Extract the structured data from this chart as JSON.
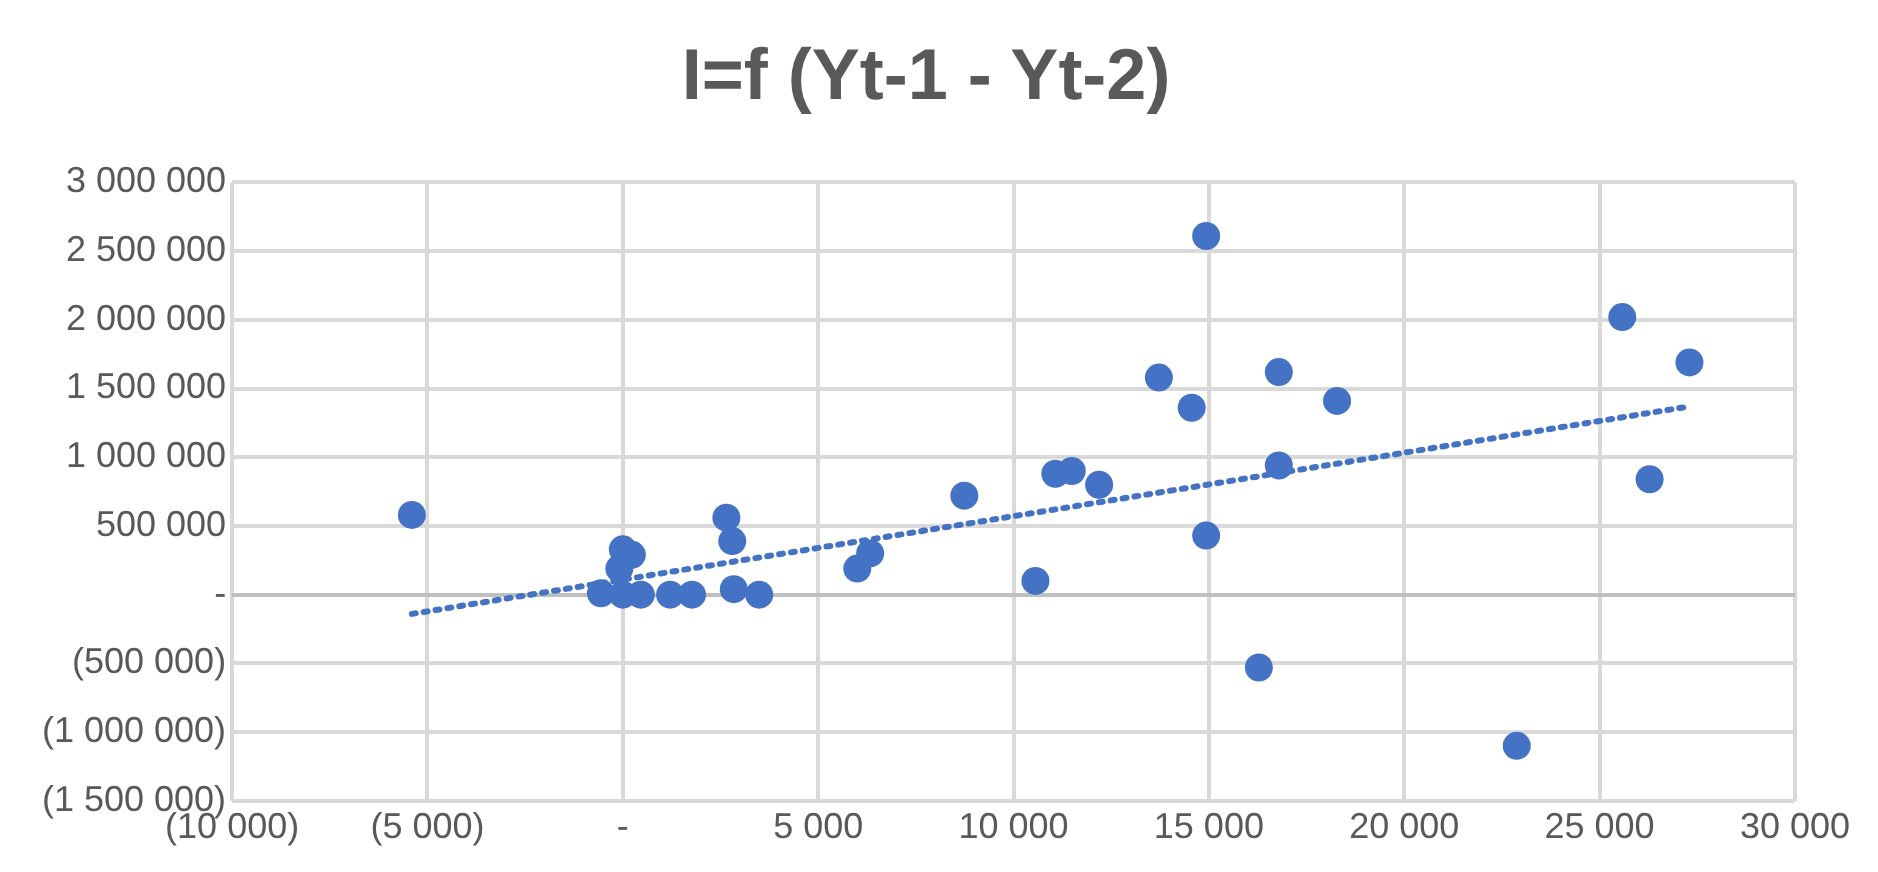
{
  "chart_data": {
    "type": "scatter",
    "title": "I=f (Yt-1 - Yt-2)",
    "xlim": [
      -10000,
      30000
    ],
    "xticks": [
      {
        "value": -10000,
        "label": "(10 000)"
      },
      {
        "value": -5000,
        "label": "(5 000)"
      },
      {
        "value": 0,
        "label": "-"
      },
      {
        "value": 5000,
        "label": "5 000"
      },
      {
        "value": 10000,
        "label": "10 000"
      },
      {
        "value": 15000,
        "label": "15 000"
      },
      {
        "value": 20000,
        "label": "20 000"
      },
      {
        "value": 25000,
        "label": "25 000"
      },
      {
        "value": 30000,
        "label": "30 000"
      }
    ],
    "ylim": [
      -1500000,
      3000000
    ],
    "yticks": [
      {
        "value": -1500000,
        "label": "(1 500 000)"
      },
      {
        "value": -1000000,
        "label": "(1 000 000)"
      },
      {
        "value": -500000,
        "label": "(500 000)"
      },
      {
        "value": 0,
        "label": "-"
      },
      {
        "value": 500000,
        "label": "500 000"
      },
      {
        "value": 1000000,
        "label": "1 000 000"
      },
      {
        "value": 1500000,
        "label": "1 500 000"
      },
      {
        "value": 2000000,
        "label": "2 000 000"
      },
      {
        "value": 2500000,
        "label": "2 500 000"
      },
      {
        "value": 3000000,
        "label": "3 000 000"
      }
    ],
    "grid": true,
    "legend": false,
    "series": [
      {
        "type": "scatter",
        "marker": "circle",
        "color": "#4472c4",
        "x": [
          -5400,
          0,
          230,
          -90,
          -560,
          0,
          460,
          1210,
          1770,
          2650,
          2800,
          2840,
          3490,
          6000,
          6330,
          8740,
          10560,
          11070,
          11490,
          12190,
          13720,
          14560,
          14930,
          14930,
          16280,
          16790,
          16790,
          18280,
          25580,
          27300,
          26280,
          22880
        ],
        "values": [
          580000,
          330000,
          290000,
          190000,
          10000,
          0,
          0,
          0,
          0,
          560000,
          390000,
          40000,
          0,
          190000,
          300000,
          720000,
          100000,
          880000,
          900000,
          800000,
          1580000,
          1360000,
          2610000,
          430000,
          -530000,
          1620000,
          940000,
          1410000,
          2020000,
          1690000,
          840000,
          -1100000
        ]
      },
      {
        "type": "line",
        "color": "#4472c4",
        "line_style": "dotted",
        "x": [
          -5400,
          27300
        ],
        "values": [
          -140000,
          1370000
        ]
      }
    ]
  }
}
